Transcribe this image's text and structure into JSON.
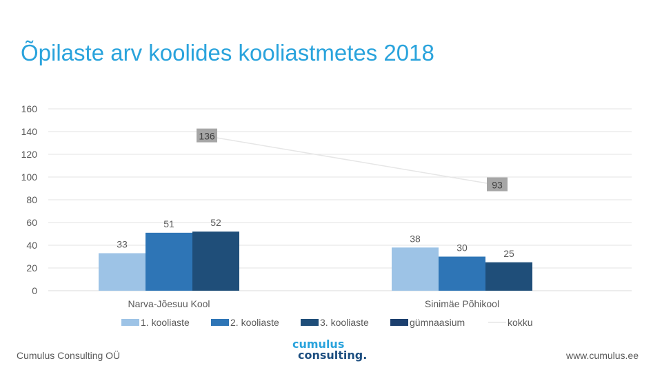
{
  "slide": {
    "title": "Õpilaste arv koolides kooliastmetes  2018",
    "footer_left": "Cumulus Consulting OÜ",
    "footer_right": "www.cumulus.ee",
    "logo_line1": "cumulus",
    "logo_line2": "consulting."
  },
  "chart_data": {
    "type": "bar",
    "title": "Õpilaste arv koolides kooliastmetes  2018",
    "categories": [
      "Narva-Jõesuu  Kool",
      "Sinimäe  Põhikool"
    ],
    "series": [
      {
        "name": "1. kooliaste",
        "kind": "bar",
        "color": "#9dc3e6",
        "values": [
          33,
          38
        ]
      },
      {
        "name": "2. kooliaste",
        "kind": "bar",
        "color": "#2e75b6",
        "values": [
          51,
          30
        ]
      },
      {
        "name": "3. kooliaste",
        "kind": "bar",
        "color": "#1f4e79",
        "values": [
          52,
          25
        ]
      },
      {
        "name": "gümnaasium",
        "kind": "bar",
        "color": "#1c3f6e",
        "values": [
          null,
          null
        ]
      },
      {
        "name": "kokku",
        "kind": "line",
        "color": "#e6e6e6",
        "values": [
          136,
          93
        ]
      }
    ],
    "yticks": [
      0,
      20,
      40,
      60,
      80,
      100,
      120,
      140,
      160
    ],
    "ylim": [
      0,
      160
    ],
    "xlabel": "",
    "ylabel": "",
    "grid": true,
    "legend": "bottom"
  }
}
